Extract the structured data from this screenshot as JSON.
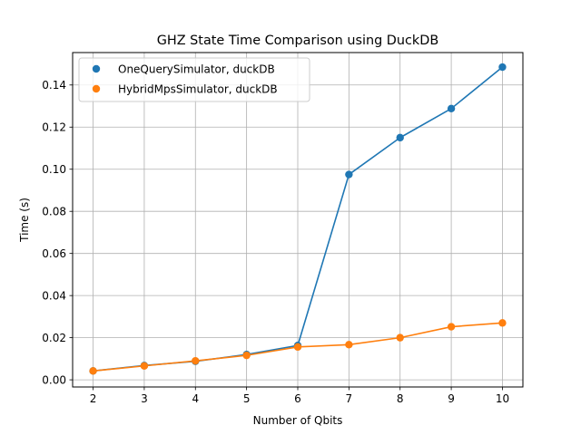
{
  "chart_data": {
    "type": "line",
    "title": "GHZ State Time Comparison using DuckDB",
    "xlabel": "Number of Qbits",
    "ylabel": "Time (s)",
    "x": [
      2,
      3,
      4,
      5,
      6,
      7,
      8,
      9,
      10
    ],
    "xlim": [
      1.6,
      10.4
    ],
    "ylim": [
      -0.0034,
      0.1554
    ],
    "xticks": [
      "2",
      "3",
      "4",
      "5",
      "6",
      "7",
      "8",
      "9",
      "10"
    ],
    "yticks": [
      "0.00",
      "0.02",
      "0.04",
      "0.06",
      "0.08",
      "0.10",
      "0.12",
      "0.14"
    ],
    "grid": true,
    "legend_position": "top-left",
    "series": [
      {
        "name": "OneQuerySimulator, duckDB",
        "color": "#1f77b4",
        "values": [
          0.0042,
          0.0068,
          0.0088,
          0.012,
          0.0163,
          0.0975,
          0.115,
          0.1288,
          0.1485
        ]
      },
      {
        "name": "HybridMpsSimulator, duckDB",
        "color": "#ff7f0e",
        "values": [
          0.0042,
          0.0066,
          0.009,
          0.0116,
          0.0156,
          0.0167,
          0.02,
          0.0252,
          0.027
        ]
      }
    ]
  }
}
